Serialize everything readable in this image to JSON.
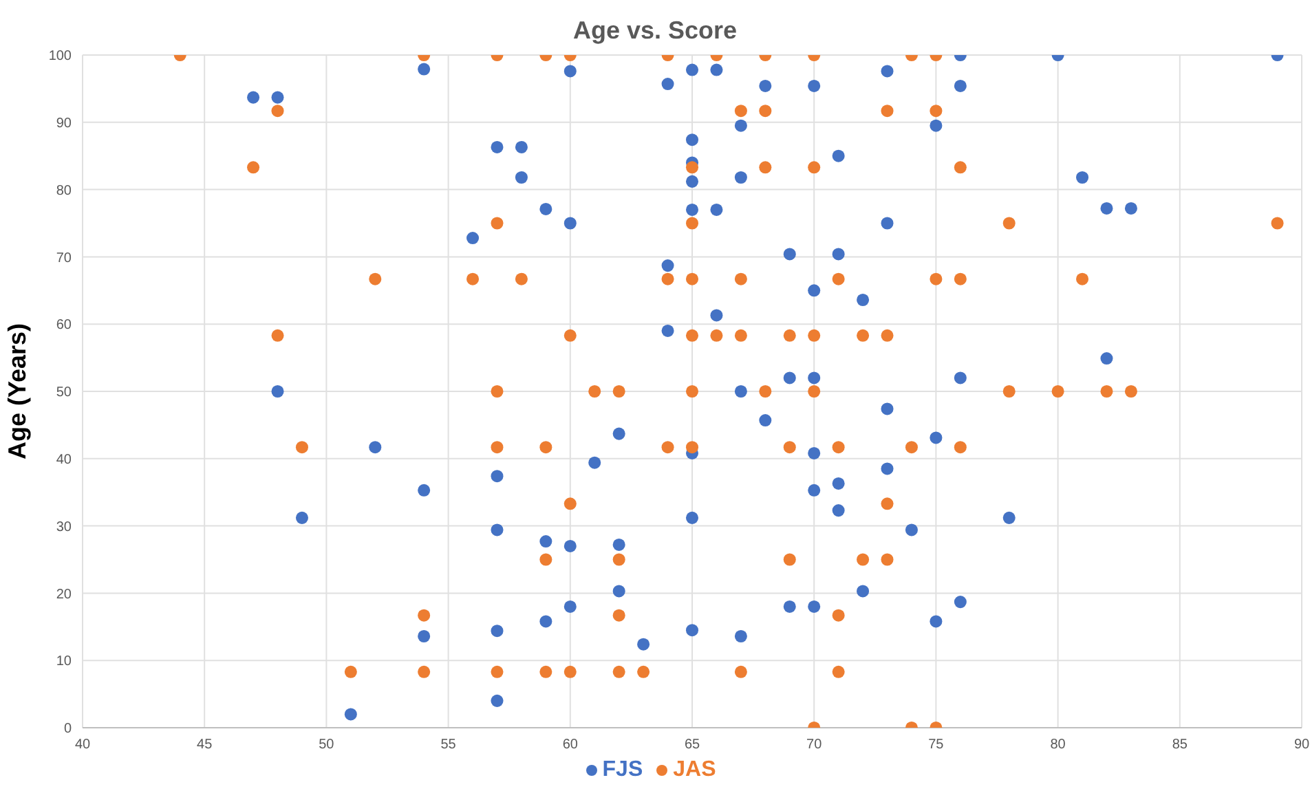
{
  "chart_data": {
    "type": "scatter",
    "title": "Age vs. Score",
    "ylabel": "Age (Years)",
    "xlim": [
      40,
      90
    ],
    "xticks": [
      40,
      45,
      50,
      55,
      60,
      65,
      70,
      75,
      80,
      85,
      90
    ],
    "ylim": [
      0,
      100
    ],
    "yticks": [
      0,
      10,
      20,
      30,
      40,
      50,
      60,
      70,
      80,
      90,
      100
    ],
    "grid": true,
    "legend": "bottom",
    "marker": "circle",
    "series": [
      {
        "name": "FJS",
        "color": "#4472c4",
        "x": [
          47,
          48,
          48,
          49,
          51,
          52,
          54,
          54,
          54,
          56,
          57,
          57,
          57,
          57,
          57,
          58,
          58,
          59,
          59,
          59,
          60,
          60,
          60,
          60,
          61,
          62,
          62,
          62,
          63,
          64,
          64,
          64,
          65,
          65,
          65,
          65,
          65,
          65,
          65,
          65,
          66,
          66,
          66,
          67,
          67,
          67,
          67,
          68,
          68,
          69,
          69,
          69,
          70,
          70,
          70,
          70,
          70,
          70,
          71,
          71,
          71,
          71,
          72,
          72,
          73,
          73,
          73,
          73,
          74,
          75,
          75,
          75,
          76,
          76,
          76,
          76,
          78,
          80,
          81,
          82,
          82,
          83,
          89
        ],
        "values": [
          93.7,
          93.7,
          50,
          31.2,
          2,
          41.7,
          97.9,
          35.3,
          13.6,
          72.8,
          86.3,
          37.4,
          29.4,
          14.4,
          4,
          86.3,
          81.8,
          77.1,
          27.7,
          15.8,
          97.6,
          75,
          27,
          18,
          39.4,
          43.7,
          27.2,
          20.3,
          12.4,
          95.7,
          68.7,
          59,
          97.8,
          87.4,
          84,
          81.2,
          77,
          40.8,
          31.2,
          14.5,
          97.8,
          77,
          61.3,
          89.5,
          81.8,
          50,
          13.6,
          95.4,
          45.7,
          70.4,
          52,
          18,
          95.4,
          65,
          52,
          40.8,
          35.3,
          18,
          85,
          70.4,
          36.3,
          32.3,
          63.6,
          20.3,
          97.6,
          75,
          47.4,
          38.5,
          29.4,
          89.5,
          43.1,
          15.8,
          100,
          95.4,
          52,
          18.7,
          31.2,
          100,
          81.8,
          77.2,
          54.9,
          77.2,
          100
        ]
      },
      {
        "name": "JAS",
        "color": "#ed7d31",
        "x": [
          44,
          47,
          48,
          48,
          49,
          51,
          52,
          54,
          54,
          54,
          56,
          57,
          57,
          57,
          57,
          57,
          58,
          59,
          59,
          59,
          59,
          60,
          60,
          60,
          60,
          61,
          62,
          62,
          62,
          62,
          63,
          64,
          64,
          64,
          65,
          65,
          65,
          65,
          65,
          65,
          66,
          66,
          67,
          67,
          67,
          67,
          68,
          68,
          68,
          68,
          69,
          69,
          69,
          70,
          70,
          70,
          70,
          70,
          71,
          71,
          71,
          71,
          72,
          72,
          73,
          73,
          73,
          73,
          74,
          74,
          74,
          75,
          75,
          75,
          75,
          76,
          76,
          76,
          78,
          78,
          80,
          81,
          82,
          83,
          89
        ],
        "values": [
          100,
          83.3,
          91.7,
          58.3,
          41.7,
          8.3,
          66.7,
          100,
          16.7,
          8.3,
          66.7,
          100,
          75,
          50,
          41.7,
          8.3,
          66.7,
          100,
          41.7,
          25,
          8.3,
          100,
          58.3,
          33.3,
          8.3,
          50,
          50,
          25,
          16.7,
          8.3,
          8.3,
          100,
          66.7,
          41.7,
          83.3,
          75,
          66.7,
          58.3,
          50,
          41.7,
          100,
          58.3,
          91.7,
          66.7,
          58.3,
          8.3,
          100,
          91.7,
          83.3,
          50,
          58.3,
          41.7,
          25,
          100,
          83.3,
          58.3,
          50,
          0,
          66.7,
          41.7,
          16.7,
          8.3,
          58.3,
          25,
          91.7,
          58.3,
          33.3,
          25,
          100,
          41.7,
          0,
          100,
          91.7,
          66.7,
          0,
          83.3,
          66.7,
          41.7,
          75,
          50,
          50,
          66.7,
          50,
          50,
          75
        ]
      }
    ]
  }
}
